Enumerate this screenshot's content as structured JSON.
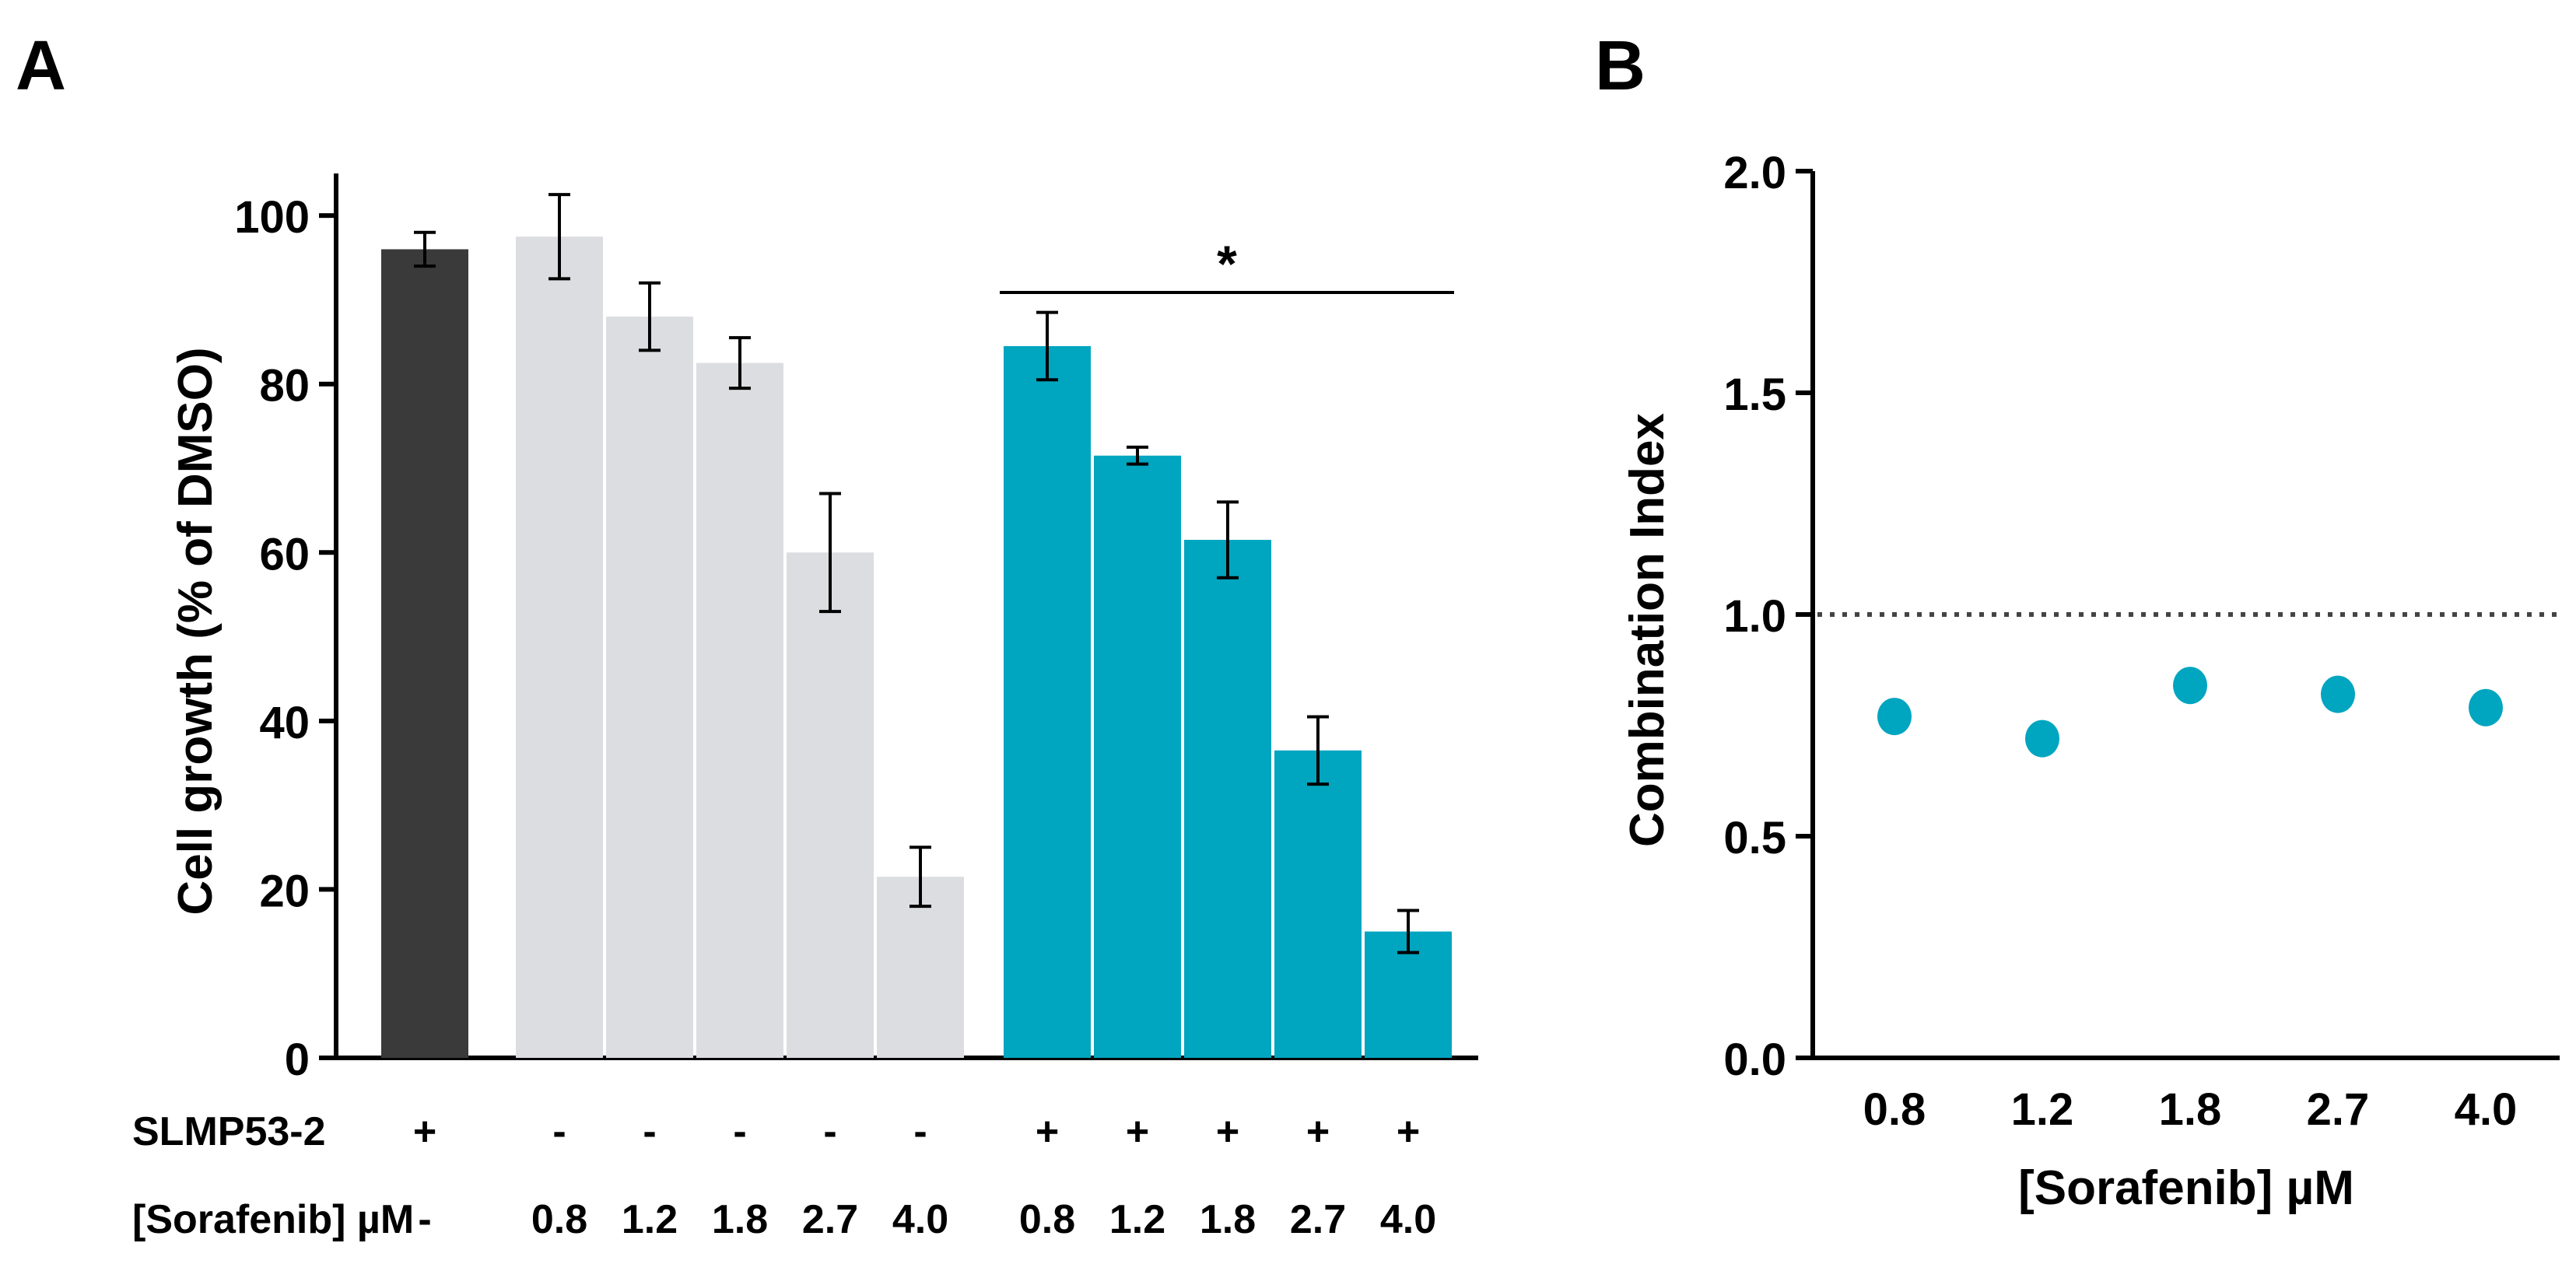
{
  "colors": {
    "slmp_alone": "#3a3a3a",
    "sorafenib_alone": "#dcdde1",
    "combination": "#00a5c0",
    "axis": "#000000"
  },
  "chart_data": [
    {
      "panel": "A",
      "type": "bar",
      "title": "",
      "xlabel": "",
      "ylabel": "Cell growth (% of DMSO)",
      "ylim": [
        0,
        105
      ],
      "yticks": [
        0,
        20,
        40,
        60,
        80,
        100
      ],
      "grid": false,
      "groups": [
        {
          "bars": [
            {
              "slmp": "+",
              "sorafenib": "-",
              "value": 96,
              "error": 2
            }
          ]
        },
        {
          "bars": [
            {
              "slmp": "-",
              "sorafenib": "0.8",
              "value": 97.5,
              "error": 5
            },
            {
              "slmp": "-",
              "sorafenib": "1.2",
              "value": 88,
              "error": 4
            },
            {
              "slmp": "-",
              "sorafenib": "1.8",
              "value": 82.5,
              "error": 3
            },
            {
              "slmp": "-",
              "sorafenib": "2.7",
              "value": 60,
              "error": 7
            },
            {
              "slmp": "-",
              "sorafenib": "4.0",
              "value": 21.5,
              "error": 3.5
            }
          ]
        },
        {
          "bars": [
            {
              "slmp": "+",
              "sorafenib": "0.8",
              "value": 84.5,
              "error": 4
            },
            {
              "slmp": "+",
              "sorafenib": "1.2",
              "value": 71.5,
              "error": 1
            },
            {
              "slmp": "+",
              "sorafenib": "1.8",
              "value": 61.5,
              "error": 4.5
            },
            {
              "slmp": "+",
              "sorafenib": "2.7",
              "value": 36.5,
              "error": 4
            },
            {
              "slmp": "+",
              "sorafenib": "4.0",
              "value": 15,
              "error": 2.5
            }
          ]
        }
      ],
      "row_labels": {
        "slmp": "SLMP53-2",
        "sorafenib": "[Sorafenib] µM"
      },
      "significance": {
        "label": "*",
        "group": 2
      }
    },
    {
      "panel": "B",
      "type": "scatter",
      "title": "",
      "xlabel": "[Sorafenib] µM",
      "ylabel": "Combination Index",
      "categories": [
        "0.8",
        "1.2",
        "1.8",
        "2.7",
        "4.0"
      ],
      "values": [
        0.77,
        0.72,
        0.84,
        0.82,
        0.79
      ],
      "ylim": [
        0,
        2
      ],
      "yticks": [
        "0.0",
        "0.5",
        "1.0",
        "1.5",
        "2.0"
      ],
      "reference_line": 1.0,
      "grid": false
    }
  ]
}
